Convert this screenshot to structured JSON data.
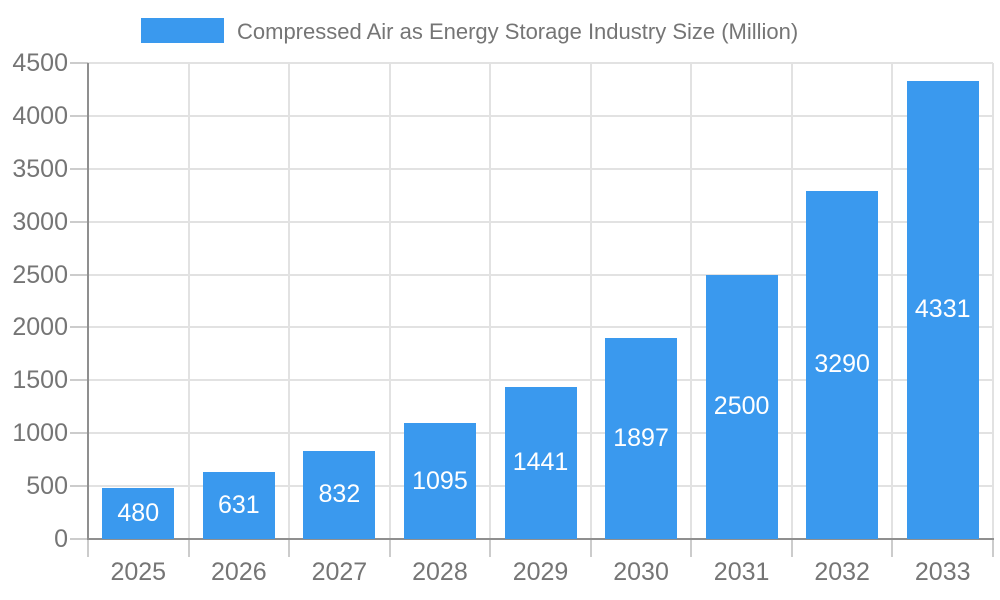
{
  "chart_data": {
    "type": "bar",
    "title": "Compressed Air as Energy Storage Industry Size (Million)",
    "legend_position": "top",
    "categories": [
      "2025",
      "2026",
      "2027",
      "2028",
      "2029",
      "2030",
      "2031",
      "2032",
      "2033"
    ],
    "values": [
      480,
      631,
      832,
      1095,
      1441,
      1897,
      2500,
      3290,
      4331
    ],
    "xlabel": "",
    "ylabel": "",
    "ylim": [
      0,
      4500
    ],
    "yticks": [
      0,
      500,
      1000,
      1500,
      2000,
      2500,
      3000,
      3500,
      4000,
      4500
    ],
    "grid": true,
    "value_label_position": "inside-center",
    "colors": {
      "bar": "#3a99ee",
      "value_label": "#ffffff",
      "axis_label": "#757575",
      "title": "#757575",
      "grid_line": "#e2e2e2",
      "axis_line": "#8f8f8f",
      "tick": "#cccccc",
      "background": "#ffffff"
    }
  }
}
